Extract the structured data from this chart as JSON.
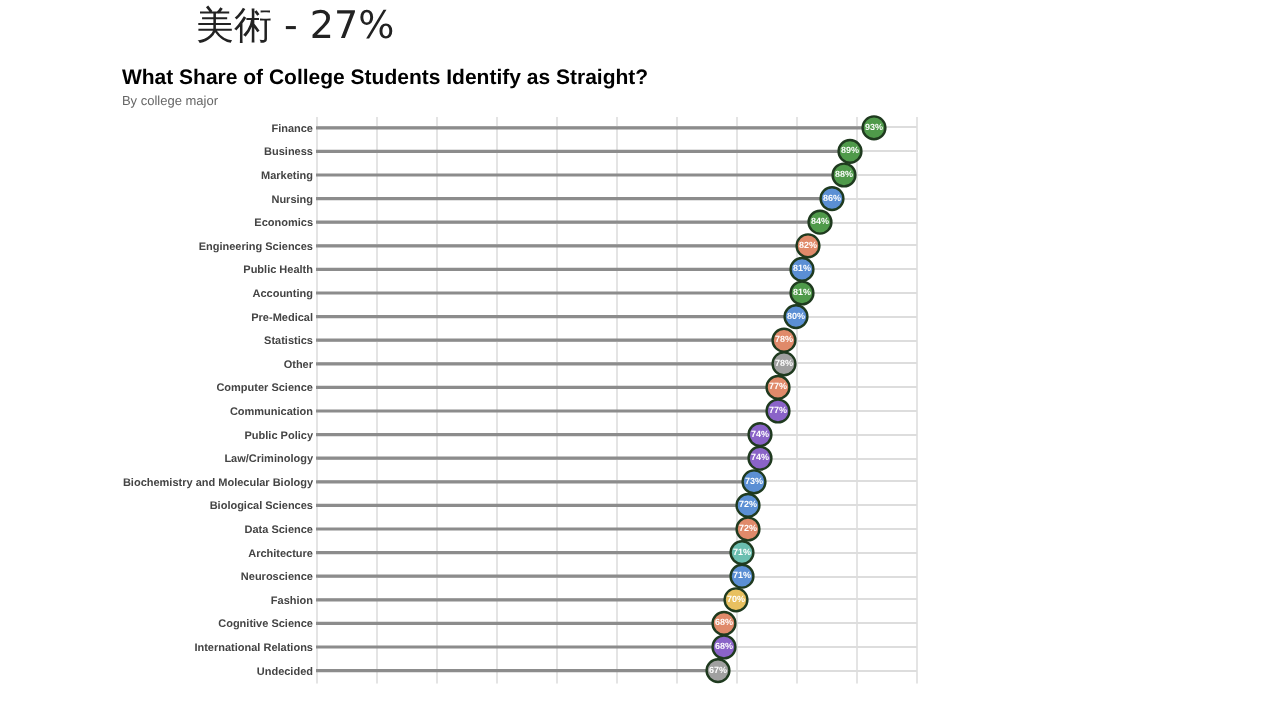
{
  "chart_data": {
    "type": "lollipop",
    "orientation": "horizontal",
    "title": "What Share of College Students Identify as Straight?",
    "subtitle": "By college major",
    "annotations": [
      "美術 - 27%"
    ],
    "categories": [
      "Finance",
      "Business",
      "Marketing",
      "Nursing",
      "Economics",
      "Engineering Sciences",
      "Public Health",
      "Accounting",
      "Pre-Medical",
      "Statistics",
      "Other",
      "Computer Science",
      "Communication",
      "Public Policy",
      "Law/Criminology",
      "Biochemistry and Molecular Biology",
      "Biological Sciences",
      "Data Science",
      "Architecture",
      "Neuroscience",
      "Fashion",
      "Cognitive Science",
      "International Relations",
      "Undecided"
    ],
    "values": [
      93,
      89,
      88,
      86,
      84,
      82,
      81,
      81,
      80,
      78,
      78,
      77,
      77,
      74,
      74,
      73,
      72,
      72,
      71,
      71,
      70,
      68,
      68,
      67
    ],
    "value_labels": [
      "93%",
      "89%",
      "88%",
      "86%",
      "84%",
      "82%",
      "81%",
      "81%",
      "80%",
      "78%",
      "78%",
      "77%",
      "77%",
      "74%",
      "74%",
      "73%",
      "72%",
      "72%",
      "71%",
      "71%",
      "70%",
      "68%",
      "68%",
      "67%"
    ],
    "colors": [
      "#4f9a4a",
      "#4f9a4a",
      "#4f9a4a",
      "#5b8fd4",
      "#4f9a4a",
      "#e08a6a",
      "#5b8fd4",
      "#4f9a4a",
      "#5b8fd4",
      "#e08a6a",
      "#a0a0a0",
      "#e08a6a",
      "#8a63c8",
      "#8a63c8",
      "#8a63c8",
      "#5b8fd4",
      "#5b8fd4",
      "#e08a6a",
      "#6bbfb0",
      "#5b8fd4",
      "#e8c060",
      "#e08a6a",
      "#8a63c8",
      "#a0a0a0"
    ],
    "grid": true,
    "tick_labels": "y"
  }
}
